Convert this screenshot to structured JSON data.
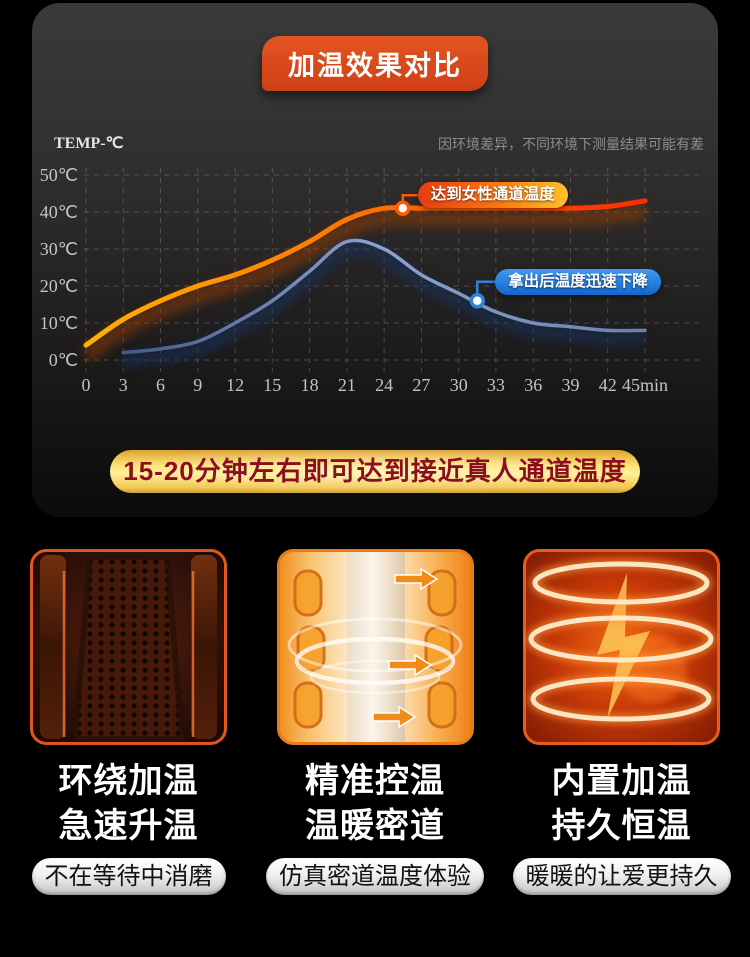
{
  "header": {
    "title": "加温效果对比",
    "disclaimer": "因环境差异，不同环境下测量结果可能有差"
  },
  "chart_data": {
    "type": "line",
    "title": "加温效果对比",
    "y_axis_label": "TEMP-℃",
    "x": [
      0,
      3,
      6,
      9,
      12,
      15,
      18,
      21,
      24,
      27,
      30,
      33,
      36,
      39,
      42,
      45
    ],
    "x_tick_labels": [
      "0",
      "3",
      "6",
      "9",
      "12",
      "15",
      "18",
      "21",
      "24",
      "27",
      "30",
      "33",
      "36",
      "39",
      "42",
      "45min"
    ],
    "y_ticks": [
      0,
      10,
      20,
      30,
      40,
      50
    ],
    "y_tick_labels": [
      "0℃",
      "10℃",
      "20℃",
      "30℃",
      "40℃",
      "50℃"
    ],
    "ylim": [
      0,
      50
    ],
    "xlim": [
      0,
      45
    ],
    "grid": "dashed",
    "legend": "none",
    "series": [
      {
        "colors": [
          "#ffb200",
          "#ff7800",
          "#ff2d00"
        ],
        "values": [
          4,
          11,
          16,
          20,
          23,
          27,
          32,
          38,
          41,
          41,
          41,
          41,
          41,
          41,
          41.5,
          43
        ],
        "annotation": {
          "label": "达到女性通道温度",
          "x": 25.5,
          "y": 41
        }
      },
      {
        "colors": [
          "#46598c",
          "#8da3d0",
          "#6c7fae"
        ],
        "values": [
          null,
          2,
          3,
          5,
          10,
          16,
          24,
          32,
          30,
          23,
          18,
          13,
          10,
          9,
          8,
          8
        ],
        "annotation": {
          "label": "拿出后温度迅速下降",
          "x": 31.5,
          "y": 16
        }
      }
    ]
  },
  "highlight_banner": {
    "text": "15-20分钟左右即可达到接近真人通道温度"
  },
  "features": [
    {
      "line1": "环绕加温",
      "line2": "急速升温",
      "tag": "不在等待中消磨"
    },
    {
      "line1": "精准控温",
      "line2": "温暖密道",
      "tag": "仿真密道温度体验"
    },
    {
      "line1": "内置加温",
      "line2": "持久恒温",
      "tag": "暖暖的让爱更持久"
    }
  ]
}
